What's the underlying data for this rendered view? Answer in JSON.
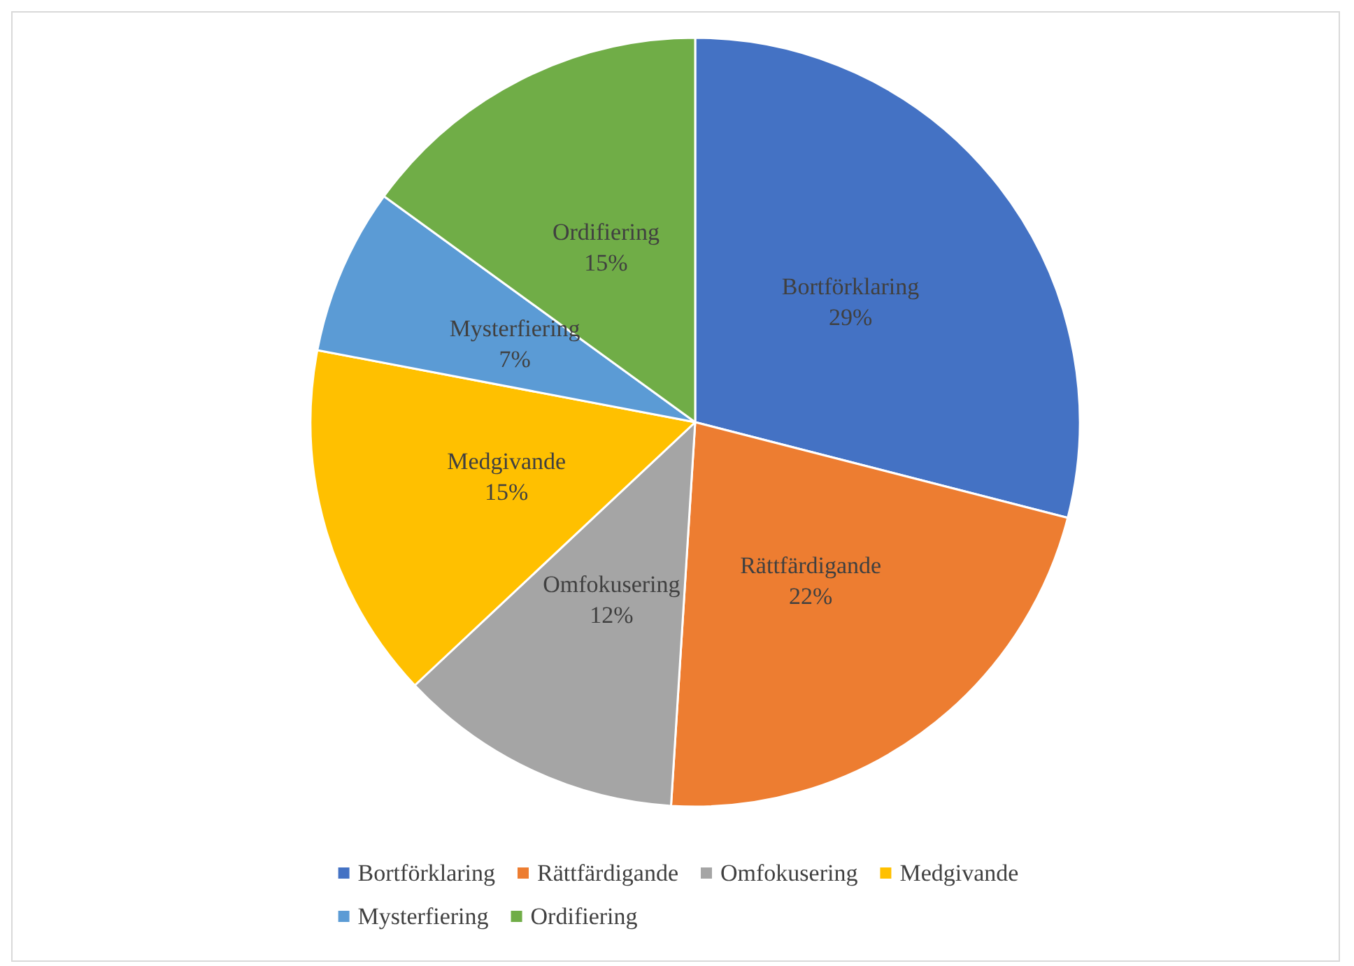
{
  "chart_data": {
    "type": "pie",
    "categories": [
      "Bortförklaring",
      "Rättfärdigande",
      "Omfokusering",
      "Medgivande",
      "Mysterfiering",
      "Ordifiering"
    ],
    "values": [
      29,
      22,
      12,
      15,
      7,
      15
    ],
    "value_labels": [
      "29%",
      "22%",
      "12%",
      "15%",
      "7%",
      "15%"
    ],
    "colors": [
      "#4472c4",
      "#ed7d31",
      "#a5a5a5",
      "#ffc000",
      "#5b9bd5",
      "#70ad47"
    ],
    "legend": "bottom"
  }
}
